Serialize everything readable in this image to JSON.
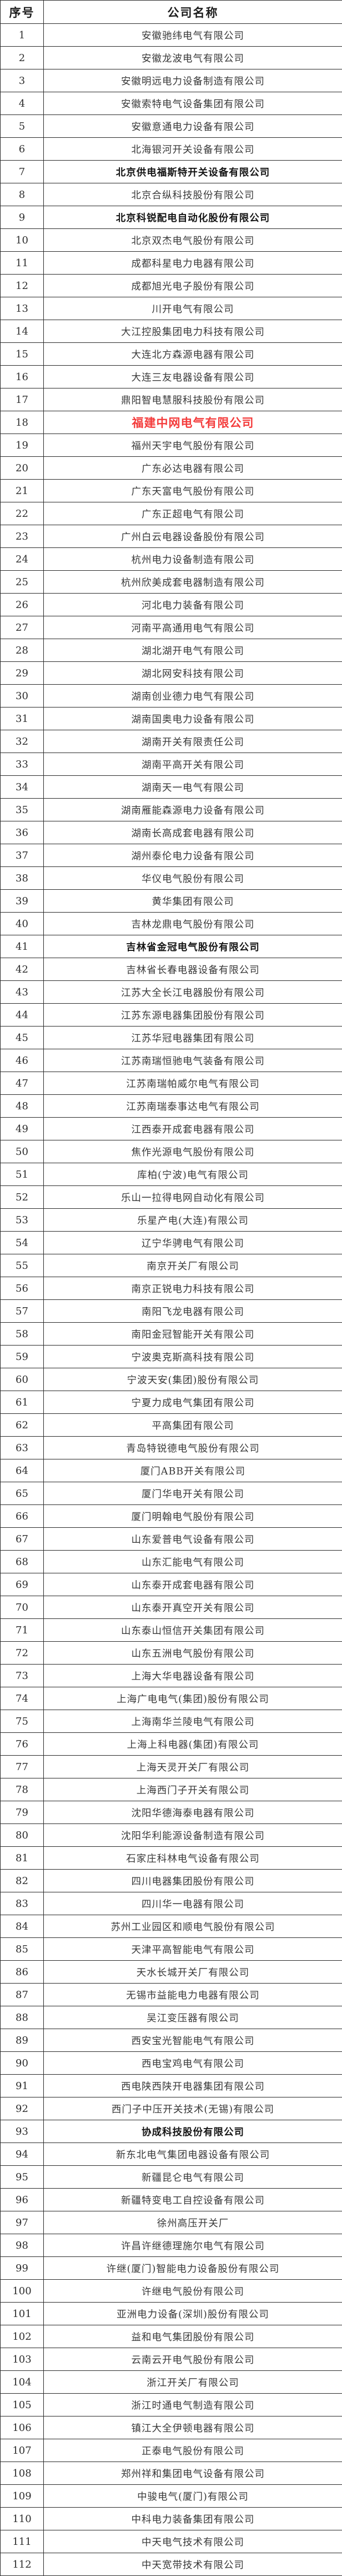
{
  "colors": {
    "highlight_red": "#f43b3b",
    "border": "#2b2b2b",
    "text": "#383838"
  },
  "table": {
    "headers": {
      "index": "序号",
      "name": "公司名称"
    },
    "rows": [
      {
        "no": "1",
        "name": "安徽驰纬电气有限公司",
        "style": ""
      },
      {
        "no": "2",
        "name": "安徽龙波电气有限公司",
        "style": ""
      },
      {
        "no": "3",
        "name": "安徽明远电力设备制造有限公司",
        "style": ""
      },
      {
        "no": "4",
        "name": "安徽索特电气设备集团有限公司",
        "style": ""
      },
      {
        "no": "5",
        "name": "安徽意通电力设备有限公司",
        "style": ""
      },
      {
        "no": "6",
        "name": "北海银河开关设备有限公司",
        "style": ""
      },
      {
        "no": "7",
        "name": "北京供电福斯特开关设备有限公司",
        "style": "bold"
      },
      {
        "no": "8",
        "name": "北京合纵科技股份有限公司",
        "style": ""
      },
      {
        "no": "9",
        "name": "北京科锐配电自动化股份有限公司",
        "style": "bold"
      },
      {
        "no": "10",
        "name": "北京双杰电气股份有限公司",
        "style": ""
      },
      {
        "no": "11",
        "name": "成都科星电力电器有限公司",
        "style": ""
      },
      {
        "no": "12",
        "name": "成都旭光电子股份有限公司",
        "style": ""
      },
      {
        "no": "13",
        "name": "川开电气有限公司",
        "style": ""
      },
      {
        "no": "14",
        "name": "大江控股集团电力科技有限公司",
        "style": ""
      },
      {
        "no": "15",
        "name": "大连北方森源电器有限公司",
        "style": ""
      },
      {
        "no": "16",
        "name": "大连三友电器设备有限公司",
        "style": ""
      },
      {
        "no": "17",
        "name": "鼎阳智电慧服科技股份有限公司",
        "style": ""
      },
      {
        "no": "18",
        "name": "福建中网电气有限公司",
        "style": "red"
      },
      {
        "no": "19",
        "name": "福州天宇电气股份有限公司",
        "style": ""
      },
      {
        "no": "20",
        "name": "广东必达电器有限公司",
        "style": ""
      },
      {
        "no": "21",
        "name": "广东天富电气股份有限公司",
        "style": ""
      },
      {
        "no": "22",
        "name": "广东正超电气有限公司",
        "style": ""
      },
      {
        "no": "23",
        "name": "广州白云电器设备股份有限公司",
        "style": ""
      },
      {
        "no": "24",
        "name": "杭州电力设备制造有限公司",
        "style": ""
      },
      {
        "no": "25",
        "name": "杭州欣美成套电器制造有限公司",
        "style": ""
      },
      {
        "no": "26",
        "name": "河北电力装备有限公司",
        "style": ""
      },
      {
        "no": "27",
        "name": "河南平高通用电气有限公司",
        "style": ""
      },
      {
        "no": "28",
        "name": "湖北湖开电气有限公司",
        "style": ""
      },
      {
        "no": "29",
        "name": "湖北网安科技有限公司",
        "style": ""
      },
      {
        "no": "30",
        "name": "湖南创业德力电气有限公司",
        "style": ""
      },
      {
        "no": "31",
        "name": "湖南国奥电力设备有限公司",
        "style": ""
      },
      {
        "no": "32",
        "name": "湖南开关有限责任公司",
        "style": ""
      },
      {
        "no": "33",
        "name": "湖南平高开关有限公司",
        "style": ""
      },
      {
        "no": "34",
        "name": "湖南天一电气有限公司",
        "style": ""
      },
      {
        "no": "35",
        "name": "湖南雁能森源电力设备有限公司",
        "style": ""
      },
      {
        "no": "36",
        "name": "湖南长高成套电器有限公司",
        "style": ""
      },
      {
        "no": "37",
        "name": "湖州泰伦电力设备有限公司",
        "style": ""
      },
      {
        "no": "38",
        "name": "华仪电气股份有限公司",
        "style": ""
      },
      {
        "no": "39",
        "name": "黄华集团有限公司",
        "style": ""
      },
      {
        "no": "40",
        "name": "吉林龙鼎电气股份有限公司",
        "style": ""
      },
      {
        "no": "41",
        "name": "吉林省金冠电气股份有限公司",
        "style": "bold"
      },
      {
        "no": "42",
        "name": "吉林省长春电器设备有限公司",
        "style": ""
      },
      {
        "no": "43",
        "name": "江苏大全长江电器股份有限公司",
        "style": ""
      },
      {
        "no": "44",
        "name": "江苏东源电器集团股份有限公司",
        "style": ""
      },
      {
        "no": "45",
        "name": "江苏华冠电器集团有限公司",
        "style": ""
      },
      {
        "no": "46",
        "name": "江苏南瑞恒驰电气装备有限公司",
        "style": ""
      },
      {
        "no": "47",
        "name": "江苏南瑞帕威尔电气有限公司",
        "style": ""
      },
      {
        "no": "48",
        "name": "江苏南瑞泰事达电气有限公司",
        "style": ""
      },
      {
        "no": "49",
        "name": "江西泰开成套电器有限公司",
        "style": ""
      },
      {
        "no": "50",
        "name": "焦作光源电气股份有限公司",
        "style": ""
      },
      {
        "no": "51",
        "name": "库柏(宁波)电气有限公司",
        "style": ""
      },
      {
        "no": "52",
        "name": "乐山一拉得电网自动化有限公司",
        "style": ""
      },
      {
        "no": "53",
        "name": "乐星产电(大连)有限公司",
        "style": ""
      },
      {
        "no": "54",
        "name": "辽宁华骋电气有限公司",
        "style": ""
      },
      {
        "no": "55",
        "name": "南京开关厂有限公司",
        "style": ""
      },
      {
        "no": "56",
        "name": "南京正锐电力科技有限公司",
        "style": ""
      },
      {
        "no": "57",
        "name": "南阳飞龙电器有限公司",
        "style": ""
      },
      {
        "no": "58",
        "name": "南阳金冠智能开关有限公司",
        "style": ""
      },
      {
        "no": "59",
        "name": "宁波奥克斯高科技有限公司",
        "style": ""
      },
      {
        "no": "60",
        "name": "宁波天安(集团)股份有限公司",
        "style": ""
      },
      {
        "no": "61",
        "name": "宁夏力成电气集团有限公司",
        "style": ""
      },
      {
        "no": "62",
        "name": "平高集团有限公司",
        "style": ""
      },
      {
        "no": "63",
        "name": "青岛特锐德电气股份有限公司",
        "style": ""
      },
      {
        "no": "64",
        "name": "厦门ABB开关有限公司",
        "style": ""
      },
      {
        "no": "65",
        "name": "厦门华电开关有限公司",
        "style": ""
      },
      {
        "no": "66",
        "name": "厦门明翰电气股份有限公司",
        "style": ""
      },
      {
        "no": "67",
        "name": "山东爱普电气设备有限公司",
        "style": ""
      },
      {
        "no": "68",
        "name": "山东汇能电气有限公司",
        "style": ""
      },
      {
        "no": "69",
        "name": "山东泰开成套电器有限公司",
        "style": ""
      },
      {
        "no": "70",
        "name": "山东泰开真空开关有限公司",
        "style": ""
      },
      {
        "no": "71",
        "name": "山东泰山恒信开关集团有限公司",
        "style": ""
      },
      {
        "no": "72",
        "name": "山东五洲电气股份有限公司",
        "style": ""
      },
      {
        "no": "73",
        "name": "上海大华电器设备有限公司",
        "style": ""
      },
      {
        "no": "74",
        "name": "上海广电电气(集团)股份有限公司",
        "style": ""
      },
      {
        "no": "75",
        "name": "上海南华兰陵电气有限公司",
        "style": ""
      },
      {
        "no": "76",
        "name": "上海上科电器(集团)有限公司",
        "style": ""
      },
      {
        "no": "77",
        "name": "上海天灵开关厂有限公司",
        "style": ""
      },
      {
        "no": "78",
        "name": "上海西门子开关有限公司",
        "style": ""
      },
      {
        "no": "79",
        "name": "沈阳华德海泰电器有限公司",
        "style": ""
      },
      {
        "no": "80",
        "name": "沈阳华利能源设备制造有限公司",
        "style": ""
      },
      {
        "no": "81",
        "name": "石家庄科林电气设备有限公司",
        "style": ""
      },
      {
        "no": "82",
        "name": "四川电器集团股份有限公司",
        "style": ""
      },
      {
        "no": "83",
        "name": "四川华一电器有限公司",
        "style": ""
      },
      {
        "no": "84",
        "name": "苏州工业园区和顺电气股份有限公司",
        "style": ""
      },
      {
        "no": "85",
        "name": "天津平高智能电气有限公司",
        "style": ""
      },
      {
        "no": "86",
        "name": "天水长城开关厂有限公司",
        "style": ""
      },
      {
        "no": "87",
        "name": "无锡市益能电力电器有限公司",
        "style": ""
      },
      {
        "no": "88",
        "name": "吴江变压器有限公司",
        "style": ""
      },
      {
        "no": "89",
        "name": "西安宝光智能电气有限公司",
        "style": ""
      },
      {
        "no": "90",
        "name": "西电宝鸡电气有限公司",
        "style": ""
      },
      {
        "no": "91",
        "name": "西电陕西陕开电器集团有限公司",
        "style": ""
      },
      {
        "no": "92",
        "name": "西门子中压开关技术(无锡)有限公司",
        "style": ""
      },
      {
        "no": "93",
        "name": "协成科技股份有限公司",
        "style": "bold"
      },
      {
        "no": "94",
        "name": "新东北电气集团电器设备有限公司",
        "style": ""
      },
      {
        "no": "95",
        "name": "新疆昆仑电气有限公司",
        "style": ""
      },
      {
        "no": "96",
        "name": "新疆特变电工自控设备有限公司",
        "style": ""
      },
      {
        "no": "97",
        "name": "徐州高压开关厂",
        "style": ""
      },
      {
        "no": "98",
        "name": "许昌许继德理施尔电气有限公司",
        "style": ""
      },
      {
        "no": "99",
        "name": "许继(厦门)智能电力设备股份有限公司",
        "style": ""
      },
      {
        "no": "100",
        "name": "许继电气股份有限公司",
        "style": ""
      },
      {
        "no": "101",
        "name": "亚洲电力设备(深圳)股份有限公司",
        "style": ""
      },
      {
        "no": "102",
        "name": "益和电气集团股份有限公司",
        "style": ""
      },
      {
        "no": "103",
        "name": "云南云开电气股份有限公司",
        "style": ""
      },
      {
        "no": "104",
        "name": "浙江开关厂有限公司",
        "style": ""
      },
      {
        "no": "105",
        "name": "浙江时通电气制造有限公司",
        "style": ""
      },
      {
        "no": "106",
        "name": "镇江大全伊顿电器有限公司",
        "style": ""
      },
      {
        "no": "107",
        "name": "正泰电气股份有限公司",
        "style": ""
      },
      {
        "no": "108",
        "name": "郑州祥和集团电气设备有限公司",
        "style": ""
      },
      {
        "no": "109",
        "name": "中骏电气(厦门)有限公司",
        "style": ""
      },
      {
        "no": "110",
        "name": "中科电力装备集团有限公司",
        "style": ""
      },
      {
        "no": "111",
        "name": "中天电气技术有限公司",
        "style": ""
      },
      {
        "no": "112",
        "name": "中天宽带技术有限公司",
        "style": ""
      }
    ]
  }
}
